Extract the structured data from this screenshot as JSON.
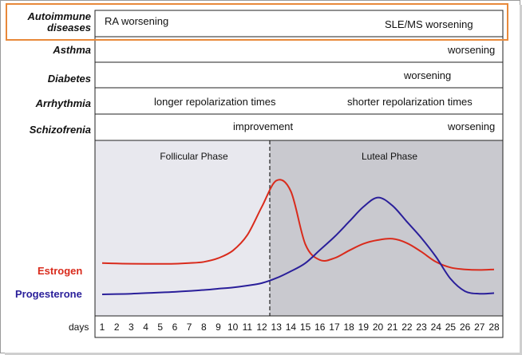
{
  "rows": {
    "autoimmune": {
      "label_line1": "Autoimmune",
      "label_line2": "diseases",
      "left": "RA worsening",
      "right": "SLE/MS worsening"
    },
    "asthma": {
      "label": "Asthma",
      "right": "worsening"
    },
    "diabetes": {
      "label": "Diabetes",
      "right": "worsening"
    },
    "arrhythmia": {
      "label": "Arrhythmia",
      "left": "longer repolarization times",
      "right": "shorter repolarization times"
    },
    "schizofrenia": {
      "label": "Schizofrenia",
      "center": "improvement",
      "right": "worsening"
    }
  },
  "chart": {
    "phase_left": "Follicular Phase",
    "phase_right": "Luteal Phase",
    "estrogen_label": "Estrogen",
    "progesterone_label": "Progesterone",
    "days_label": "days",
    "days": [
      "1",
      "2",
      "3",
      "4",
      "5",
      "6",
      "7",
      "8",
      "9",
      "10",
      "11",
      "12",
      "13",
      "14",
      "15",
      "16",
      "17",
      "18",
      "19",
      "20",
      "21",
      "22",
      "23",
      "24",
      "25",
      "26",
      "27",
      "28"
    ],
    "ovulation_day": 14
  },
  "colors": {
    "highlight_box": "#e8893a",
    "estrogen": "#d92b1c",
    "progesterone": "#2a1f9a",
    "follicular_bg": "#e8e8ee",
    "luteal_bg": "#c9c9cf"
  },
  "chart_data": {
    "type": "line",
    "x": [
      1,
      2,
      3,
      4,
      5,
      6,
      7,
      8,
      9,
      10,
      11,
      12,
      13,
      14,
      15,
      16,
      17,
      18,
      19,
      20,
      21,
      22,
      23,
      24,
      25,
      26,
      27,
      28
    ],
    "series": [
      {
        "name": "Estrogen",
        "values": [
          5.0,
          4.95,
          4.9,
          4.88,
          4.88,
          4.9,
          5.0,
          5.2,
          5.8,
          7.0,
          9.5,
          14.0,
          18.2,
          16.5,
          8.0,
          5.5,
          5.8,
          7.0,
          8.1,
          8.7,
          8.9,
          8.2,
          6.8,
          5.2,
          4.3,
          4.0,
          3.9,
          4.0
        ]
      },
      {
        "name": "Progesterone",
        "values": [
          0.0,
          0.05,
          0.1,
          0.2,
          0.3,
          0.4,
          0.55,
          0.7,
          0.9,
          1.1,
          1.4,
          1.8,
          2.6,
          3.7,
          5.0,
          7.1,
          9.2,
          11.6,
          14.0,
          15.5,
          14.2,
          11.6,
          9.0,
          6.0,
          2.5,
          0.5,
          0.1,
          0.2
        ]
      }
    ],
    "xlabel": "days",
    "ylabel": "",
    "annotations": [
      "Follicular Phase",
      "Luteal Phase"
    ]
  }
}
